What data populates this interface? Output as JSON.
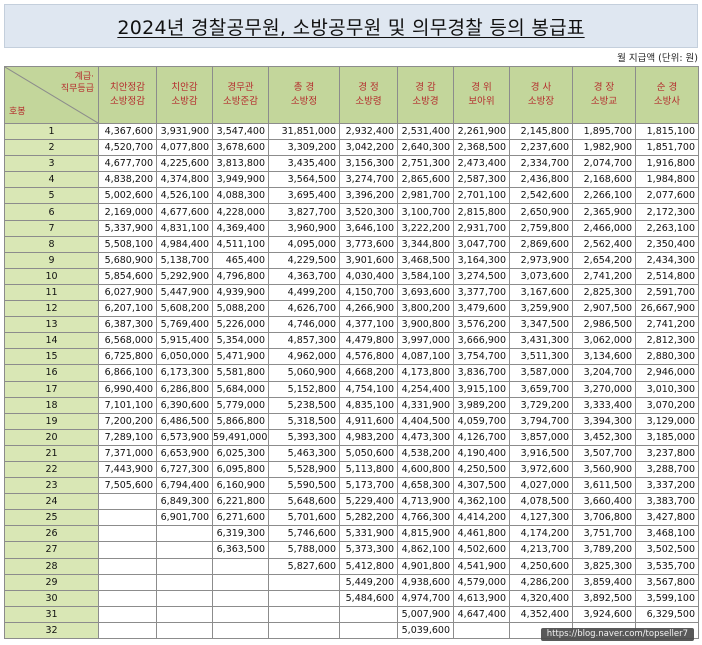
{
  "title": "2024년 경찰공무원, 소방공무원 및 의무경찰 등의 봉급표",
  "unit_note": "월 지급액 (단위: 원)",
  "corner": {
    "top": "계급·\n직무등급",
    "bottom": "호봉"
  },
  "columns": [
    {
      "line1": "치안정감",
      "line2": "소방정감"
    },
    {
      "line1": "치안감",
      "line2": "소방감"
    },
    {
      "line1": "경무관",
      "line2": "소방준감"
    },
    {
      "line1": "총  경",
      "line2": "소방정"
    },
    {
      "line1": "경  정",
      "line2": "소방령"
    },
    {
      "line1": "경  감",
      "line2": "소방경"
    },
    {
      "line1": "경  위",
      "line2": "보아위"
    },
    {
      "line1": "경  사",
      "line2": "소방장"
    },
    {
      "line1": "경  장",
      "line2": "소방교"
    },
    {
      "line1": "순  경",
      "line2": "소방사"
    }
  ],
  "rows": [
    {
      "step": "1",
      "values": [
        "4,367,600",
        "3,931,900",
        "3,547,400",
        "31,851,000",
        "2,932,400",
        "2,531,400",
        "2,261,900",
        "2,145,800",
        "1,895,700",
        "1,815,100"
      ]
    },
    {
      "step": "2",
      "values": [
        "4,520,700",
        "4,077,800",
        "3,678,600",
        "3,309,200",
        "3,042,200",
        "2,640,300",
        "2,368,500",
        "2,237,600",
        "1,982,900",
        "1,851,700"
      ]
    },
    {
      "step": "3",
      "values": [
        "4,677,700",
        "4,225,600",
        "3,813,800",
        "3,435,400",
        "3,156,300",
        "2,751,300",
        "2,473,400",
        "2,334,700",
        "2,074,700",
        "1,916,800"
      ]
    },
    {
      "step": "4",
      "values": [
        "4,838,200",
        "4,374,800",
        "3,949,900",
        "3,564,500",
        "3,274,700",
        "2,865,600",
        "2,587,300",
        "2,436,800",
        "2,168,600",
        "1,984,800"
      ]
    },
    {
      "step": "5",
      "values": [
        "5,002,600",
        "4,526,100",
        "4,088,300",
        "3,695,400",
        "3,396,200",
        "2,981,700",
        "2,701,100",
        "2,542,600",
        "2,266,100",
        "2,077,600"
      ]
    },
    {
      "step": "6",
      "values": [
        "2,169,000",
        "4,677,600",
        "4,228,000",
        "3,827,700",
        "3,520,300",
        "3,100,700",
        "2,815,800",
        "2,650,900",
        "2,365,900",
        "2,172,300"
      ]
    },
    {
      "step": "7",
      "values": [
        "5,337,900",
        "4,831,100",
        "4,369,400",
        "3,960,900",
        "3,646,100",
        "3,222,200",
        "2,931,700",
        "2,759,800",
        "2,466,000",
        "2,263,100"
      ]
    },
    {
      "step": "8",
      "values": [
        "5,508,100",
        "4,984,400",
        "4,511,100",
        "4,095,000",
        "3,773,600",
        "3,344,800",
        "3,047,700",
        "2,869,600",
        "2,562,400",
        "2,350,400"
      ]
    },
    {
      "step": "9",
      "values": [
        "5,680,900",
        "5,138,700",
        "465,400",
        "4,229,500",
        "3,901,600",
        "3,468,500",
        "3,164,300",
        "2,973,900",
        "2,654,200",
        "2,434,300"
      ]
    },
    {
      "step": "10",
      "values": [
        "5,854,600",
        "5,292,900",
        "4,796,800",
        "4,363,700",
        "4,030,400",
        "3,584,100",
        "3,274,500",
        "3,073,600",
        "2,741,200",
        "2,514,800"
      ]
    },
    {
      "step": "11",
      "values": [
        "6,027,900",
        "5,447,900",
        "4,939,900",
        "4,499,200",
        "4,150,700",
        "3,693,600",
        "3,377,700",
        "3,167,600",
        "2,825,300",
        "2,591,700"
      ]
    },
    {
      "step": "12",
      "values": [
        "6,207,100",
        "5,608,200",
        "5,088,200",
        "4,626,700",
        "4,266,900",
        "3,800,200",
        "3,479,600",
        "3,259,900",
        "2,907,500",
        "26,667,900"
      ]
    },
    {
      "step": "13",
      "values": [
        "6,387,300",
        "5,769,400",
        "5,226,000",
        "4,746,000",
        "4,377,100",
        "3,900,800",
        "3,576,200",
        "3,347,500",
        "2,986,500",
        "2,741,200"
      ]
    },
    {
      "step": "14",
      "values": [
        "6,568,000",
        "5,915,400",
        "5,354,000",
        "4,857,300",
        "4,479,800",
        "3,997,000",
        "3,666,900",
        "3,431,300",
        "3,062,000",
        "2,812,300"
      ]
    },
    {
      "step": "15",
      "values": [
        "6,725,800",
        "6,050,000",
        "5,471,900",
        "4,962,000",
        "4,576,800",
        "4,087,100",
        "3,754,700",
        "3,511,300",
        "3,134,600",
        "2,880,300"
      ]
    },
    {
      "step": "16",
      "values": [
        "6,866,100",
        "6,173,300",
        "5,581,800",
        "5,060,900",
        "4,668,200",
        "4,173,800",
        "3,836,700",
        "3,587,000",
        "3,204,700",
        "2,946,000"
      ]
    },
    {
      "step": "17",
      "values": [
        "6,990,400",
        "6,286,800",
        "5,684,000",
        "5,152,800",
        "4,754,100",
        "4,254,400",
        "3,915,100",
        "3,659,700",
        "3,270,000",
        "3,010,300"
      ]
    },
    {
      "step": "18",
      "values": [
        "7,101,100",
        "6,390,600",
        "5,779,000",
        "5,238,500",
        "4,835,100",
        "4,331,900",
        "3,989,200",
        "3,729,200",
        "3,333,400",
        "3,070,200"
      ]
    },
    {
      "step": "19",
      "values": [
        "7,200,200",
        "6,486,500",
        "5,866,800",
        "5,318,500",
        "4,911,600",
        "4,404,500",
        "4,059,700",
        "3,794,700",
        "3,394,300",
        "3,129,000"
      ]
    },
    {
      "step": "20",
      "values": [
        "7,289,100",
        "6,573,900",
        "59,491,000",
        "5,393,300",
        "4,983,200",
        "4,473,300",
        "4,126,700",
        "3,857,000",
        "3,452,300",
        "3,185,000"
      ]
    },
    {
      "step": "21",
      "values": [
        "7,371,000",
        "6,653,900",
        "6,025,300",
        "5,463,300",
        "5,050,600",
        "4,538,200",
        "4,190,400",
        "3,916,500",
        "3,507,700",
        "3,237,800"
      ]
    },
    {
      "step": "22",
      "values": [
        "7,443,900",
        "6,727,300",
        "6,095,800",
        "5,528,900",
        "5,113,800",
        "4,600,800",
        "4,250,500",
        "3,972,600",
        "3,560,900",
        "3,288,700"
      ]
    },
    {
      "step": "23",
      "values": [
        "7,505,600",
        "6,794,400",
        "6,160,900",
        "5,590,500",
        "5,173,700",
        "4,658,300",
        "4,307,500",
        "4,027,000",
        "3,611,500",
        "3,337,200"
      ]
    },
    {
      "step": "24",
      "values": [
        "",
        "6,849,300",
        "6,221,800",
        "5,648,600",
        "5,229,400",
        "4,713,900",
        "4,362,100",
        "4,078,500",
        "3,660,400",
        "3,383,700"
      ]
    },
    {
      "step": "25",
      "values": [
        "",
        "6,901,700",
        "6,271,600",
        "5,701,600",
        "5,282,200",
        "4,766,300",
        "4,414,200",
        "4,127,300",
        "3,706,800",
        "3,427,800"
      ]
    },
    {
      "step": "26",
      "values": [
        "",
        "",
        "6,319,300",
        "5,746,600",
        "5,331,900",
        "4,815,900",
        "4,461,800",
        "4,174,200",
        "3,751,700",
        "3,468,100"
      ]
    },
    {
      "step": "27",
      "values": [
        "",
        "",
        "6,363,500",
        "5,788,000",
        "5,373,300",
        "4,862,100",
        "4,502,600",
        "4,213,700",
        "3,789,200",
        "3,502,500"
      ]
    },
    {
      "step": "28",
      "values": [
        "",
        "",
        "",
        "5,827,600",
        "5,412,800",
        "4,901,800",
        "4,541,900",
        "4,250,600",
        "3,825,300",
        "3,535,700"
      ]
    },
    {
      "step": "29",
      "values": [
        "",
        "",
        "",
        "",
        "5,449,200",
        "4,938,600",
        "4,579,000",
        "4,286,200",
        "3,859,400",
        "3,567,800"
      ]
    },
    {
      "step": "30",
      "values": [
        "",
        "",
        "",
        "",
        "5,484,600",
        "4,974,700",
        "4,613,900",
        "4,320,400",
        "3,892,500",
        "3,599,100"
      ]
    },
    {
      "step": "31",
      "values": [
        "",
        "",
        "",
        "",
        "",
        "5,007,900",
        "4,647,400",
        "4,352,400",
        "3,924,600",
        "6,329,500"
      ]
    },
    {
      "step": "32",
      "values": [
        "",
        "",
        "",
        "",
        "",
        "5,039,600",
        "",
        "",
        "",
        ""
      ]
    }
  ],
  "watermark": "https://blog.naver.com/topseller7"
}
